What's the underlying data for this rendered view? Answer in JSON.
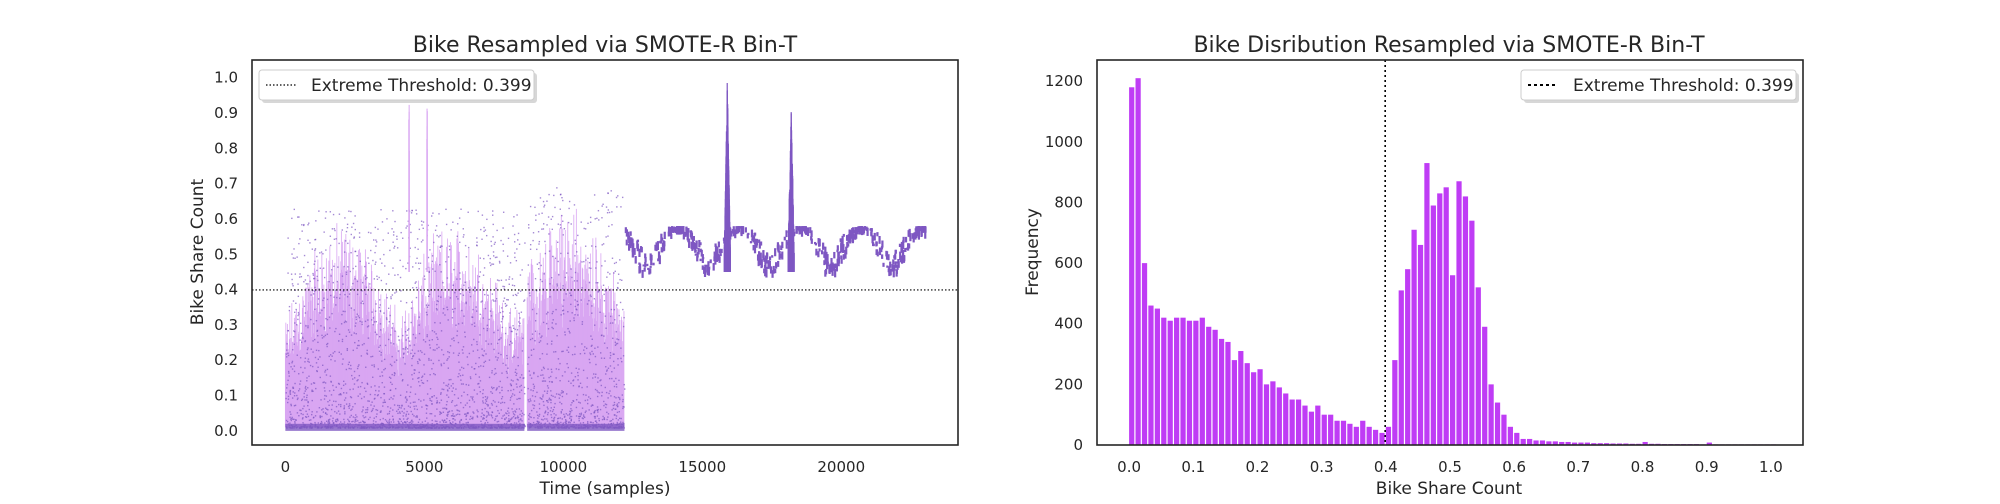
{
  "chart_data": [
    {
      "type": "scatter",
      "title": "Bike Resampled via SMOTE-R Bin-T",
      "xlabel": "Time (samples)",
      "ylabel": "Bike Share Count",
      "xlim": [
        -1200,
        24200
      ],
      "ylim": [
        -0.04,
        1.05
      ],
      "xticks": [
        0,
        5000,
        10000,
        15000,
        20000
      ],
      "xtick_labels": [
        "0",
        "5000",
        "10000",
        "15000",
        "20000"
      ],
      "yticks": [
        0.0,
        0.1,
        0.2,
        0.3,
        0.4,
        0.5,
        0.6,
        0.7,
        0.8,
        0.9,
        1.0
      ],
      "ytick_labels": [
        "0.0",
        "0.1",
        "0.2",
        "0.3",
        "0.4",
        "0.5",
        "0.6",
        "0.7",
        "0.8",
        "0.9",
        "1.0"
      ],
      "threshold": 0.399,
      "legend": {
        "label": "Extreme Threshold: 0.399",
        "placement": "upper-left"
      },
      "grid": false,
      "colors": {
        "line": "#d9a6f2",
        "points": "#7e57c2",
        "threshold": "#000000"
      },
      "segments": [
        {
          "x_start": 0,
          "x_end": 8600,
          "y_max": 0.62
        },
        {
          "x_start": 8700,
          "x_end": 12200,
          "y_max": 0.68
        }
      ],
      "peaks": [
        {
          "x": 4450,
          "y": 0.93
        },
        {
          "x": 5100,
          "y": 0.92
        },
        {
          "x": 15900,
          "y": 1.0
        },
        {
          "x": 18200,
          "y": 0.92
        }
      ],
      "resampled_band": {
        "x_start": 12200,
        "x_end": 23000,
        "y_range": [
          0.4,
          0.58
        ]
      }
    },
    {
      "type": "bar",
      "title": "Bike Disribution Resampled via SMOTE-R Bin-T",
      "xlabel": "Bike Share Count",
      "ylabel": "Frequency",
      "xlim": [
        -0.05,
        1.05
      ],
      "ylim": [
        0,
        1270
      ],
      "xticks": [
        0.0,
        0.1,
        0.2,
        0.3,
        0.4,
        0.5,
        0.6,
        0.7,
        0.8,
        0.9,
        1.0
      ],
      "xtick_labels": [
        "0.0",
        "0.1",
        "0.2",
        "0.3",
        "0.4",
        "0.5",
        "0.6",
        "0.7",
        "0.8",
        "0.9",
        "1.0"
      ],
      "yticks": [
        0,
        200,
        400,
        600,
        800,
        1000,
        1200
      ],
      "ytick_labels": [
        "0",
        "200",
        "400",
        "600",
        "800",
        "1000",
        "1200"
      ],
      "threshold": 0.399,
      "legend": {
        "label": "Extreme Threshold: 0.399",
        "placement": "upper-right"
      },
      "grid": false,
      "colors": {
        "bars": "#bf3cf5",
        "threshold": "#000000"
      },
      "bin_width": 0.01,
      "bin_start": 0.0,
      "values": [
        1180,
        1210,
        600,
        460,
        450,
        420,
        410,
        420,
        420,
        410,
        410,
        420,
        390,
        380,
        350,
        340,
        280,
        310,
        270,
        240,
        250,
        200,
        210,
        190,
        170,
        150,
        150,
        130,
        110,
        130,
        100,
        100,
        80,
        80,
        70,
        60,
        80,
        60,
        50,
        40,
        60,
        280,
        510,
        580,
        710,
        660,
        930,
        790,
        830,
        850,
        560,
        870,
        820,
        740,
        520,
        390,
        200,
        140,
        100,
        60,
        40,
        20,
        20,
        15,
        15,
        12,
        12,
        10,
        10,
        8,
        8,
        8,
        6,
        6,
        6,
        5,
        5,
        5,
        4,
        4,
        10,
        4,
        4,
        3,
        3,
        3,
        3,
        3,
        3,
        2,
        8,
        2,
        2,
        2,
        2,
        2,
        2,
        2,
        2,
        2,
        2
      ]
    }
  ]
}
